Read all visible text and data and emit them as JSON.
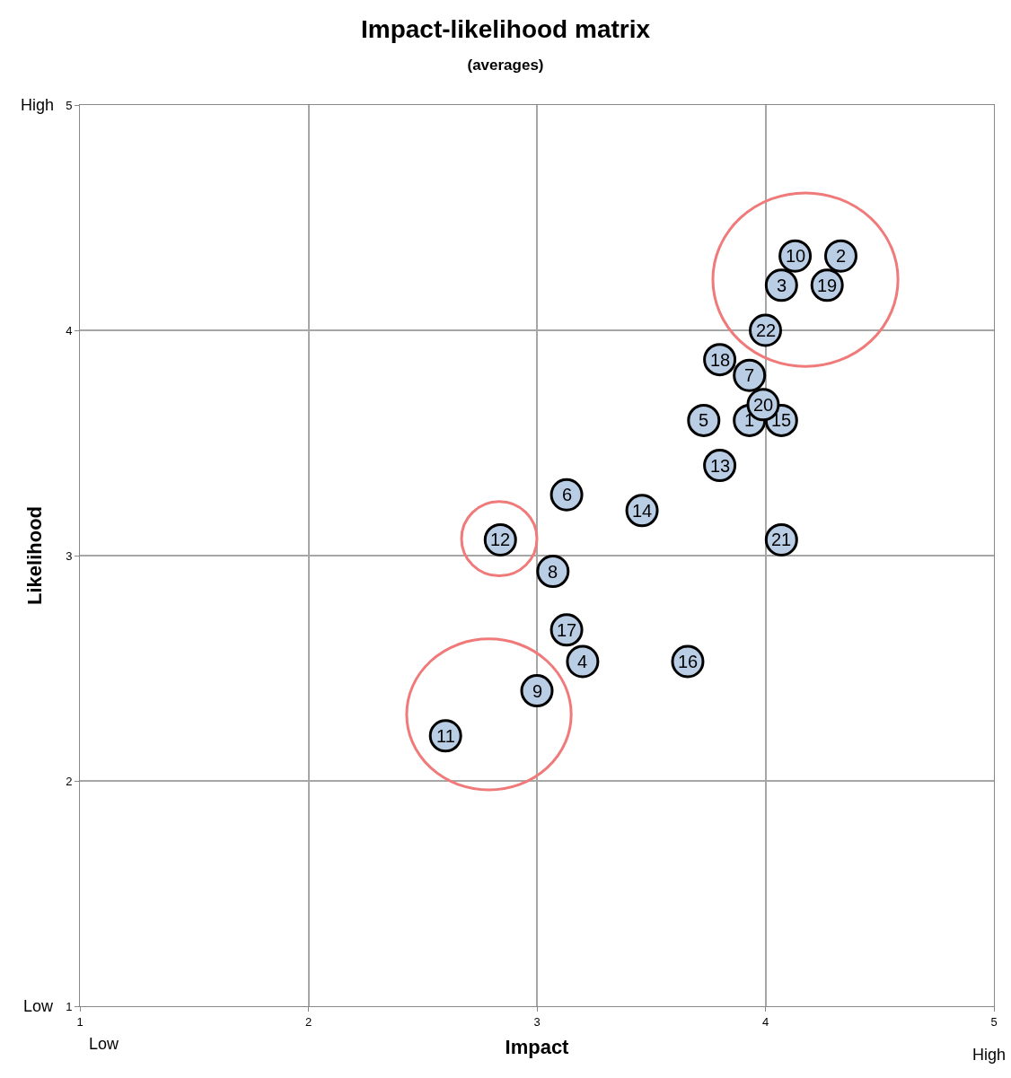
{
  "chart_data": {
    "type": "scatter",
    "title": "Impact-likelihood matrix",
    "subtitle": "(averages)",
    "xlabel": "Impact",
    "ylabel": "Likelihood",
    "x": [
      3.93,
      4.33,
      4.07,
      3.2,
      3.73,
      3.13,
      3.93,
      3.07,
      3.0,
      4.13,
      2.6,
      2.84,
      3.8,
      3.46,
      4.07,
      3.66,
      3.13,
      3.8,
      4.27,
      3.99,
      4.07,
      4.0
    ],
    "series": [
      {
        "color": "#b9cde5",
        "values": [
          3.6,
          4.33,
          4.2,
          2.53,
          3.6,
          3.27,
          3.8,
          2.93,
          2.4,
          4.33,
          2.2,
          3.07,
          3.4,
          3.2,
          3.6,
          2.53,
          2.67,
          3.87,
          4.2,
          3.67,
          3.07,
          4.0
        ]
      }
    ],
    "xlim": [
      1,
      5
    ],
    "xticks": [
      1,
      2,
      3,
      4,
      5
    ],
    "ylim": [
      1,
      5
    ],
    "yticks": [
      1,
      2,
      3,
      4,
      5
    ],
    "grid": true,
    "marker": "circle",
    "annotations": [
      {
        "text": "1",
        "x": 3.93,
        "y": 3.6
      },
      {
        "text": "2",
        "x": 4.33,
        "y": 4.33
      },
      {
        "text": "3",
        "x": 4.07,
        "y": 4.2
      },
      {
        "text": "4",
        "x": 3.2,
        "y": 2.53
      },
      {
        "text": "5",
        "x": 3.73,
        "y": 3.6
      },
      {
        "text": "6",
        "x": 3.13,
        "y": 3.27
      },
      {
        "text": "7",
        "x": 3.93,
        "y": 3.8
      },
      {
        "text": "8",
        "x": 3.07,
        "y": 2.93
      },
      {
        "text": "9",
        "x": 3.0,
        "y": 2.4
      },
      {
        "text": "10",
        "x": 4.13,
        "y": 4.33
      },
      {
        "text": "11",
        "x": 2.6,
        "y": 2.2
      },
      {
        "text": "12",
        "x": 2.84,
        "y": 3.07
      },
      {
        "text": "13",
        "x": 3.8,
        "y": 3.4
      },
      {
        "text": "14",
        "x": 3.46,
        "y": 3.2
      },
      {
        "text": "15",
        "x": 4.07,
        "y": 3.6
      },
      {
        "text": "16",
        "x": 3.66,
        "y": 2.53
      },
      {
        "text": "17",
        "x": 3.13,
        "y": 2.67
      },
      {
        "text": "18",
        "x": 3.8,
        "y": 3.87
      },
      {
        "text": "19",
        "x": 4.27,
        "y": 4.2
      },
      {
        "text": "20",
        "x": 3.99,
        "y": 3.67
      },
      {
        "text": "21",
        "x": 4.07,
        "y": 3.07
      },
      {
        "text": "22",
        "x": 4.0,
        "y": 4.0
      },
      "High",
      "Low",
      "Low",
      "High"
    ]
  }
}
